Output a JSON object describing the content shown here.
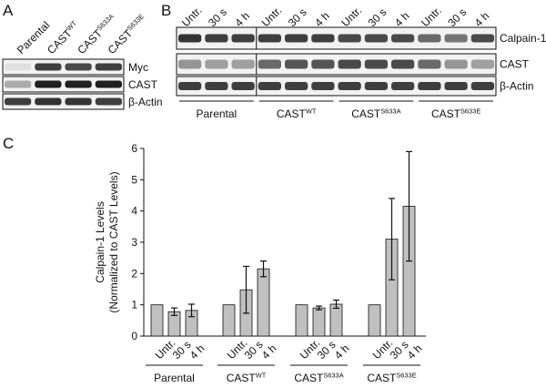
{
  "panels": {
    "a": {
      "label": "A",
      "lanes": [
        {
          "base": "Parental",
          "sup": ""
        },
        {
          "base": "CAST",
          "sup": "WT"
        },
        {
          "base": "CAST",
          "sup": "S633A"
        },
        {
          "base": "CAST",
          "sup": "S633E"
        }
      ],
      "blots": [
        {
          "label": "Myc",
          "intensities": [
            0.05,
            0.8,
            0.75,
            0.8
          ]
        },
        {
          "label": "CAST",
          "intensities": [
            0.3,
            0.95,
            0.95,
            0.95
          ]
        },
        {
          "label": "β-Actin",
          "intensities": [
            0.8,
            0.85,
            0.85,
            0.8
          ]
        }
      ]
    },
    "b": {
      "label": "B",
      "lanes": [
        "Untr.",
        "30 s",
        "4 h",
        "Untr.",
        "30 s",
        "4 h",
        "Untr.",
        "30 s",
        "4 h",
        "Untr.",
        "30 s",
        "4 h"
      ],
      "blots": [
        {
          "label": "Calpain-1",
          "intensities": [
            0.85,
            0.8,
            0.8,
            0.8,
            0.8,
            0.8,
            0.75,
            0.75,
            0.75,
            0.6,
            0.55,
            0.75
          ]
        },
        {
          "label": "CAST",
          "intensities": [
            0.4,
            0.35,
            0.35,
            0.6,
            0.7,
            0.7,
            0.75,
            0.75,
            0.75,
            0.6,
            0.4,
            0.35
          ]
        },
        {
          "label": "β-Actin",
          "intensities": [
            0.8,
            0.8,
            0.8,
            0.8,
            0.8,
            0.8,
            0.8,
            0.8,
            0.8,
            0.8,
            0.8,
            0.8
          ]
        }
      ],
      "groups": [
        {
          "base": "Parental",
          "sup": ""
        },
        {
          "base": "CAST",
          "sup": "WT"
        },
        {
          "base": "CAST",
          "sup": "S633A"
        },
        {
          "base": "CAST",
          "sup": "S633E"
        }
      ]
    },
    "c": {
      "label": "C"
    }
  },
  "chart_data": {
    "type": "bar",
    "ylabel_line1": "Calpain-1 Levels",
    "ylabel_line2": "(Normalized to CAST Levels)",
    "ylim": [
      0,
      6
    ],
    "yticks": [
      "0",
      "1",
      "2",
      "3",
      "4",
      "5",
      "6"
    ],
    "bar_labels": [
      "Untr.",
      "30 s",
      "4 h",
      "Untr.",
      "30 s",
      "4 h",
      "Untr.",
      "30 s",
      "4 h",
      "Untr.",
      "30 s",
      "4 h"
    ],
    "groups": [
      {
        "base": "Parental",
        "sup": ""
      },
      {
        "base": "CAST",
        "sup": "WT"
      },
      {
        "base": "CAST",
        "sup": "S633A"
      },
      {
        "base": "CAST",
        "sup": "S633E"
      }
    ],
    "values": [
      1.0,
      0.78,
      0.82,
      1.0,
      1.48,
      2.15,
      1.0,
      0.9,
      1.02,
      1.0,
      3.1,
      4.15
    ],
    "errors": [
      0,
      0.12,
      0.2,
      0,
      0.75,
      0.25,
      0,
      0.06,
      0.13,
      0,
      1.3,
      1.75
    ],
    "colors": {
      "bar": "#c0c0c0",
      "outline": "#111111"
    }
  }
}
